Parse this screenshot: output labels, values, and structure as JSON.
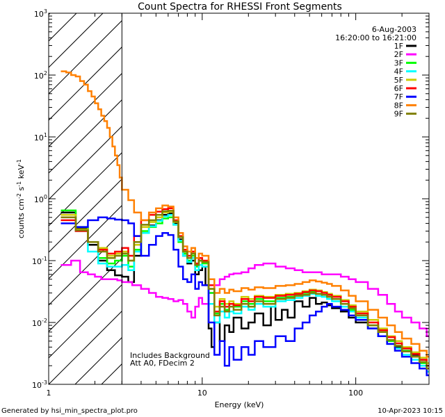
{
  "chart_data": {
    "type": "line",
    "title": "Count Spectra for RHESSI Front Segments",
    "xlabel": "Energy (keV)",
    "ylabel": "counts cm-2 s-1 keV-1",
    "xscale": "log",
    "yscale": "log",
    "xlim": [
      1,
      300
    ],
    "ylim": [
      0.001,
      1000
    ],
    "x_tick_labels": [
      {
        "value": 1,
        "label": "1"
      },
      {
        "value": 10,
        "label": "10"
      },
      {
        "value": 100,
        "label": "100"
      }
    ],
    "y_tick_labels": [
      {
        "value": 0.001,
        "base": "10",
        "exp": "-3"
      },
      {
        "value": 0.01,
        "base": "10",
        "exp": "-2"
      },
      {
        "value": 0.1,
        "base": "10",
        "exp": "-1"
      },
      {
        "value": 1,
        "base": "10",
        "exp": "0"
      },
      {
        "value": 10,
        "base": "10",
        "exp": "1"
      },
      {
        "value": 100,
        "base": "10",
        "exp": "2"
      },
      {
        "value": 1000,
        "base": "10",
        "exp": "3"
      }
    ],
    "shaded_region": {
      "from": 1,
      "to": 3,
      "description": "hatched"
    },
    "vertical_line": 3,
    "legend_position": "top-right",
    "date": "6-Aug-2003",
    "time_range": "16:20:00 to 16:21:00",
    "annotations": [
      "Includes Background",
      "Att A0, FDecim 2"
    ],
    "series": [
      {
        "name": "1F",
        "color": "#000000",
        "x": [
          1.2,
          1.5,
          1.8,
          2.1,
          2.4,
          2.7,
          3.0,
          3.3,
          3.6,
          4.0,
          4.5,
          5.0,
          5.5,
          6.0,
          6.5,
          7.0,
          7.5,
          8.0,
          8.5,
          9.0,
          9.5,
          10,
          10.5,
          11,
          11.5,
          12,
          13,
          14,
          15,
          16,
          18,
          20,
          22,
          25,
          28,
          30,
          33,
          36,
          40,
          45,
          50,
          55,
          60,
          65,
          70,
          80,
          90,
          100,
          120,
          140,
          160,
          180,
          200,
          230,
          260,
          290
        ],
        "y": [
          0.6,
          0.33,
          0.18,
          0.1,
          0.07,
          0.058,
          0.055,
          0.045,
          0.12,
          0.28,
          0.37,
          0.45,
          0.55,
          0.58,
          0.4,
          0.22,
          0.12,
          0.09,
          0.1,
          0.06,
          0.07,
          0.08,
          0.04,
          0.008,
          0.004,
          0.01,
          0.005,
          0.009,
          0.007,
          0.012,
          0.008,
          0.01,
          0.014,
          0.009,
          0.018,
          0.011,
          0.016,
          0.012,
          0.022,
          0.018,
          0.025,
          0.02,
          0.021,
          0.019,
          0.017,
          0.015,
          0.012,
          0.01,
          0.008,
          0.006,
          0.005,
          0.004,
          0.0035,
          0.003,
          0.0025,
          0.002
        ]
      },
      {
        "name": "2F",
        "color": "#ff00ff",
        "x": [
          1.2,
          1.4,
          1.6,
          1.8,
          2.0,
          2.2,
          2.4,
          2.6,
          2.8,
          3.0,
          3.5,
          4.0,
          4.5,
          5.0,
          5.5,
          6.0,
          6.5,
          7.0,
          7.5,
          8.0,
          8.5,
          9.0,
          9.5,
          10,
          11,
          12,
          13,
          14,
          15,
          16,
          18,
          20,
          22,
          25,
          30,
          35,
          40,
          45,
          50,
          60,
          70,
          80,
          90,
          100,
          120,
          140,
          160,
          180,
          200,
          230,
          260,
          290
        ],
        "y": [
          0.085,
          0.1,
          0.065,
          0.06,
          0.055,
          0.05,
          0.05,
          0.05,
          0.048,
          0.045,
          0.04,
          0.035,
          0.03,
          0.026,
          0.025,
          0.024,
          0.022,
          0.023,
          0.02,
          0.015,
          0.012,
          0.018,
          0.025,
          0.02,
          0.03,
          0.04,
          0.05,
          0.055,
          0.06,
          0.062,
          0.065,
          0.075,
          0.085,
          0.09,
          0.08,
          0.075,
          0.07,
          0.065,
          0.065,
          0.06,
          0.06,
          0.055,
          0.05,
          0.045,
          0.035,
          0.028,
          0.02,
          0.015,
          0.012,
          0.01,
          0.008,
          0.006
        ]
      },
      {
        "name": "3F",
        "color": "#00ff00",
        "x": [
          1.2,
          1.5,
          1.8,
          2.1,
          2.4,
          2.7,
          3.0,
          3.3,
          3.6,
          4.0,
          4.5,
          5.0,
          5.5,
          6.0,
          6.5,
          7.0,
          7.5,
          8.0,
          8.5,
          9.0,
          9.5,
          10,
          11,
          12,
          13,
          14,
          15,
          16,
          18,
          20,
          22,
          25,
          30,
          35,
          40,
          45,
          50,
          55,
          60,
          65,
          70,
          80,
          90,
          100,
          120,
          140,
          160,
          180,
          200,
          230,
          260,
          290
        ],
        "y": [
          0.65,
          0.35,
          0.2,
          0.11,
          0.09,
          0.1,
          0.12,
          0.08,
          0.15,
          0.3,
          0.35,
          0.4,
          0.48,
          0.5,
          0.38,
          0.2,
          0.13,
          0.1,
          0.12,
          0.08,
          0.1,
          0.09,
          0.03,
          0.014,
          0.02,
          0.016,
          0.02,
          0.018,
          0.022,
          0.02,
          0.024,
          0.022,
          0.025,
          0.026,
          0.028,
          0.03,
          0.031,
          0.029,
          0.028,
          0.026,
          0.024,
          0.02,
          0.016,
          0.013,
          0.009,
          0.007,
          0.005,
          0.0042,
          0.0035,
          0.0028,
          0.0022,
          0.0018
        ]
      },
      {
        "name": "4F",
        "color": "#00ffff",
        "x": [
          1.2,
          1.5,
          1.8,
          2.1,
          2.4,
          2.7,
          3.0,
          3.3,
          3.6,
          4.0,
          4.5,
          5.0,
          5.5,
          6.0,
          6.5,
          7.0,
          7.5,
          8.0,
          8.5,
          9.0,
          9.5,
          10,
          11,
          12,
          13,
          14,
          15,
          16,
          18,
          20,
          22,
          25,
          30,
          35,
          40,
          45,
          50,
          55,
          60,
          65,
          70,
          80,
          90,
          100,
          120,
          140,
          160,
          180,
          200,
          230,
          260,
          290
        ],
        "y": [
          0.5,
          0.3,
          0.14,
          0.09,
          0.08,
          0.08,
          0.085,
          0.07,
          0.14,
          0.28,
          0.36,
          0.44,
          0.52,
          0.55,
          0.38,
          0.21,
          0.12,
          0.095,
          0.11,
          0.07,
          0.085,
          0.08,
          0.02,
          0.01,
          0.015,
          0.012,
          0.015,
          0.014,
          0.018,
          0.016,
          0.02,
          0.018,
          0.022,
          0.023,
          0.025,
          0.027,
          0.029,
          0.027,
          0.026,
          0.024,
          0.022,
          0.018,
          0.015,
          0.012,
          0.008,
          0.006,
          0.0045,
          0.0038,
          0.003,
          0.0025,
          0.002,
          0.0016
        ]
      },
      {
        "name": "5F",
        "color": "#cccc00",
        "x": [
          1.2,
          1.5,
          1.8,
          2.1,
          2.4,
          2.7,
          3.0,
          3.3,
          3.6,
          4.0,
          4.5,
          5.0,
          5.5,
          6.0,
          6.5,
          7.0,
          7.5,
          8.0,
          8.5,
          9.0,
          9.5,
          10,
          11,
          12,
          13,
          14,
          15,
          16,
          18,
          20,
          22,
          25,
          30,
          35,
          40,
          45,
          50,
          55,
          60,
          65,
          70,
          80,
          90,
          100,
          120,
          140,
          160,
          180,
          200,
          230,
          260,
          290
        ],
        "y": [
          0.55,
          0.32,
          0.2,
          0.16,
          0.12,
          0.13,
          0.14,
          0.1,
          0.18,
          0.35,
          0.42,
          0.5,
          0.6,
          0.62,
          0.42,
          0.24,
          0.14,
          0.11,
          0.13,
          0.085,
          0.1,
          0.095,
          0.035,
          0.018,
          0.024,
          0.02,
          0.022,
          0.02,
          0.026,
          0.024,
          0.027,
          0.026,
          0.028,
          0.029,
          0.03,
          0.032,
          0.034,
          0.033,
          0.031,
          0.029,
          0.027,
          0.023,
          0.019,
          0.015,
          0.011,
          0.008,
          0.006,
          0.005,
          0.004,
          0.0033,
          0.0027,
          0.0022
        ]
      },
      {
        "name": "6F",
        "color": "#ff0000",
        "x": [
          1.2,
          1.5,
          1.8,
          2.1,
          2.4,
          2.7,
          3.0,
          3.3,
          3.6,
          4.0,
          4.5,
          5.0,
          5.5,
          6.0,
          6.5,
          7.0,
          7.5,
          8.0,
          8.5,
          9.0,
          9.5,
          10,
          11,
          12,
          13,
          14,
          15,
          16,
          18,
          20,
          22,
          25,
          30,
          35,
          40,
          45,
          50,
          55,
          60,
          65,
          70,
          80,
          90,
          100,
          120,
          140,
          160,
          180,
          200,
          230,
          260,
          290
        ],
        "y": [
          0.45,
          0.3,
          0.2,
          0.15,
          0.13,
          0.14,
          0.16,
          0.12,
          0.25,
          0.45,
          0.55,
          0.62,
          0.68,
          0.7,
          0.45,
          0.25,
          0.15,
          0.12,
          0.14,
          0.09,
          0.11,
          0.1,
          0.04,
          0.015,
          0.022,
          0.018,
          0.02,
          0.019,
          0.024,
          0.022,
          0.026,
          0.025,
          0.027,
          0.028,
          0.029,
          0.031,
          0.033,
          0.032,
          0.03,
          0.028,
          0.026,
          0.022,
          0.018,
          0.014,
          0.01,
          0.0075,
          0.0058,
          0.0046,
          0.0038,
          0.0031,
          0.0025,
          0.002
        ]
      },
      {
        "name": "7F",
        "color": "#0000ff",
        "x": [
          1.2,
          1.5,
          1.8,
          2.1,
          2.4,
          2.7,
          3.0,
          3.3,
          3.6,
          4.0,
          4.5,
          5.0,
          5.5,
          6.0,
          6.5,
          7.0,
          7.5,
          8.0,
          8.5,
          9.0,
          9.5,
          10,
          11,
          12,
          13,
          14,
          15,
          16,
          18,
          20,
          22,
          25,
          30,
          35,
          40,
          45,
          50,
          55,
          60,
          65,
          70,
          80,
          90,
          100,
          120,
          140,
          160,
          180,
          200,
          230,
          260,
          290
        ],
        "y": [
          0.4,
          0.35,
          0.45,
          0.5,
          0.48,
          0.46,
          0.45,
          0.4,
          0.25,
          0.12,
          0.18,
          0.25,
          0.28,
          0.26,
          0.15,
          0.08,
          0.05,
          0.045,
          0.06,
          0.035,
          0.045,
          0.04,
          0.01,
          0.003,
          0.005,
          0.002,
          0.004,
          0.0025,
          0.004,
          0.003,
          0.005,
          0.004,
          0.006,
          0.005,
          0.008,
          0.01,
          0.013,
          0.015,
          0.018,
          0.02,
          0.018,
          0.016,
          0.013,
          0.011,
          0.008,
          0.006,
          0.0045,
          0.0035,
          0.0028,
          0.0022,
          0.0018,
          0.0014
        ]
      },
      {
        "name": "8F",
        "color": "#ff8000",
        "x": [
          1.2,
          1.3,
          1.4,
          1.5,
          1.6,
          1.7,
          1.8,
          1.9,
          2.0,
          2.1,
          2.2,
          2.3,
          2.4,
          2.5,
          2.6,
          2.7,
          2.8,
          2.9,
          3.0,
          3.3,
          3.6,
          4.0,
          4.5,
          5.0,
          5.5,
          6.0,
          6.5,
          7.0,
          7.5,
          8.0,
          8.5,
          9.0,
          9.5,
          10,
          11,
          12,
          13,
          14,
          15,
          16,
          18,
          20,
          22,
          25,
          30,
          35,
          40,
          45,
          50,
          55,
          60,
          65,
          70,
          80,
          90,
          100,
          120,
          140,
          160,
          180,
          200,
          230,
          260,
          290
        ],
        "y": [
          115,
          110,
          100,
          95,
          80,
          70,
          55,
          45,
          35,
          28,
          22,
          18,
          14,
          10,
          7,
          5,
          3.5,
          2.2,
          1.4,
          0.95,
          0.6,
          0.45,
          0.6,
          0.7,
          0.78,
          0.75,
          0.5,
          0.28,
          0.17,
          0.14,
          0.16,
          0.11,
          0.13,
          0.12,
          0.05,
          0.03,
          0.035,
          0.03,
          0.034,
          0.032,
          0.036,
          0.034,
          0.037,
          0.036,
          0.039,
          0.04,
          0.042,
          0.045,
          0.048,
          0.046,
          0.044,
          0.042,
          0.039,
          0.033,
          0.027,
          0.022,
          0.016,
          0.012,
          0.009,
          0.007,
          0.0055,
          0.0045,
          0.0035,
          0.0028
        ]
      },
      {
        "name": "9F",
        "color": "#808000",
        "x": [
          1.2,
          1.5,
          1.8,
          2.1,
          2.4,
          2.7,
          3.0,
          3.3,
          3.6,
          4.0,
          4.5,
          5.0,
          5.5,
          6.0,
          6.5,
          7.0,
          7.5,
          8.0,
          8.5,
          9.0,
          9.5,
          10,
          11,
          12,
          13,
          14,
          15,
          16,
          18,
          20,
          22,
          25,
          30,
          35,
          40,
          45,
          50,
          55,
          60,
          65,
          70,
          80,
          90,
          100,
          120,
          140,
          160,
          180,
          200,
          230,
          260,
          290
        ],
        "y": [
          0.5,
          0.31,
          0.2,
          0.14,
          0.11,
          0.12,
          0.13,
          0.1,
          0.2,
          0.38,
          0.45,
          0.55,
          0.63,
          0.64,
          0.43,
          0.24,
          0.14,
          0.11,
          0.13,
          0.085,
          0.1,
          0.095,
          0.035,
          0.013,
          0.018,
          0.015,
          0.018,
          0.016,
          0.02,
          0.018,
          0.022,
          0.02,
          0.024,
          0.025,
          0.027,
          0.028,
          0.03,
          0.029,
          0.028,
          0.026,
          0.024,
          0.02,
          0.017,
          0.013,
          0.009,
          0.007,
          0.0052,
          0.0042,
          0.0034,
          0.0028,
          0.0023,
          0.0018
        ]
      }
    ]
  },
  "footer": {
    "left": "Generated by hsi_min_spectra_plot.pro",
    "right": "10-Apr-2023 10:15"
  }
}
